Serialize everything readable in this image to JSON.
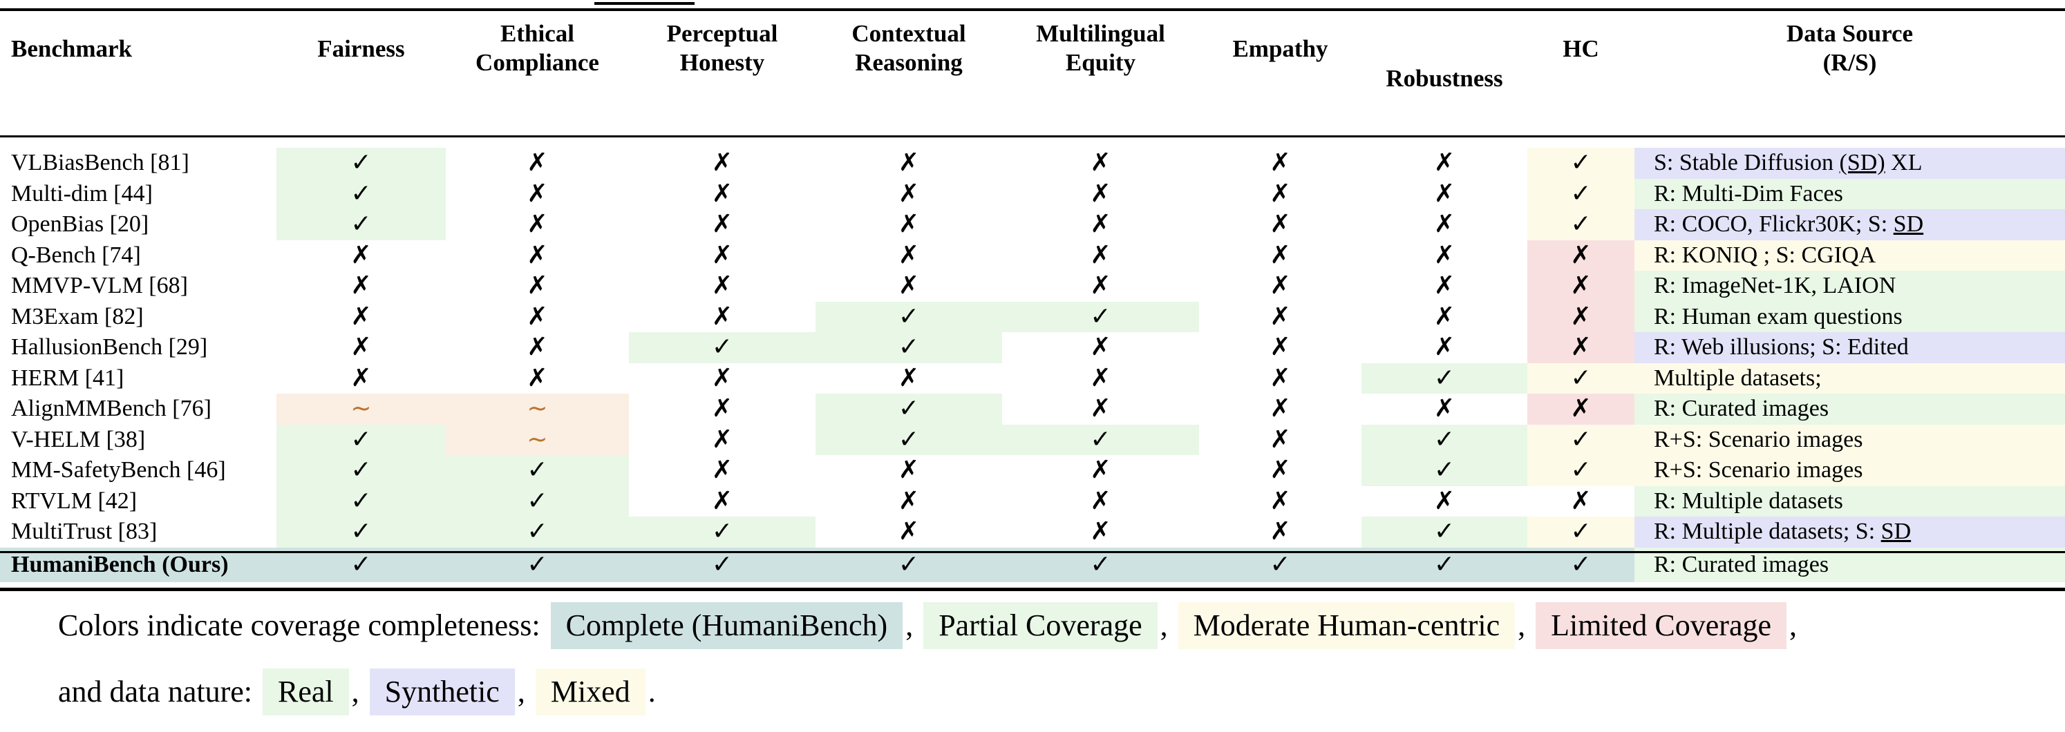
{
  "table": {
    "headers": [
      {
        "key": "benchmark",
        "label": "Benchmark",
        "lines": [
          "Benchmark"
        ]
      },
      {
        "key": "fair",
        "label": "Fairness",
        "lines": [
          "Fairness"
        ]
      },
      {
        "key": "eth",
        "label": "Ethical Compliance",
        "lines": [
          "Ethical",
          "Compliance"
        ]
      },
      {
        "key": "perc",
        "label": "Perceptual Honesty",
        "lines": [
          "Perceptual",
          "Honesty"
        ]
      },
      {
        "key": "ctx",
        "label": "Contextual Reasoning",
        "lines": [
          "Contextual",
          "Reasoning"
        ]
      },
      {
        "key": "multi",
        "label": "Multilingual Equity",
        "lines": [
          "Multilingual",
          "Equity"
        ]
      },
      {
        "key": "emp",
        "label": "Empathy",
        "lines": [
          "Empathy"
        ]
      },
      {
        "key": "rob",
        "label": "Robustness",
        "lines": [
          "Robustness"
        ]
      },
      {
        "key": "hc",
        "label": "HC",
        "lines": [
          "HC"
        ]
      },
      {
        "key": "src",
        "label": "Data Source (R/S)",
        "lines": [
          "Data Source",
          "(R/S)"
        ]
      }
    ],
    "rows": [
      {
        "name": "VLBiasBench [81]",
        "cells": [
          [
            "✓",
            "partial"
          ],
          [
            "✗",
            "none"
          ],
          [
            "✗",
            "none"
          ],
          [
            "✗",
            "none"
          ],
          [
            "✗",
            "none"
          ],
          [
            "✗",
            "none"
          ],
          [
            "✗",
            "none"
          ],
          [
            "✓",
            "moderate"
          ]
        ],
        "source": [
          [
            "S: Stable Diffusion ",
            ""
          ],
          [
            "(SD)",
            "u"
          ],
          [
            " XL",
            ""
          ]
        ],
        "source_color": "synthetic"
      },
      {
        "name": "Multi-dim [44]",
        "cells": [
          [
            "✓",
            "partial"
          ],
          [
            "✗",
            "none"
          ],
          [
            "✗",
            "none"
          ],
          [
            "✗",
            "none"
          ],
          [
            "✗",
            "none"
          ],
          [
            "✗",
            "none"
          ],
          [
            "✗",
            "none"
          ],
          [
            "✓",
            "moderate"
          ]
        ],
        "source": [
          [
            "R: Multi-Dim Faces",
            ""
          ]
        ],
        "source_color": "real"
      },
      {
        "name": "OpenBias [20]",
        "cells": [
          [
            "✓",
            "partial"
          ],
          [
            "✗",
            "none"
          ],
          [
            "✗",
            "none"
          ],
          [
            "✗",
            "none"
          ],
          [
            "✗",
            "none"
          ],
          [
            "✗",
            "none"
          ],
          [
            "✗",
            "none"
          ],
          [
            "✓",
            "moderate"
          ]
        ],
        "source": [
          [
            "R: COCO, Flickr30K; S: ",
            ""
          ],
          [
            "SD",
            "u"
          ]
        ],
        "source_color": "synthetic"
      },
      {
        "name": "Q-Bench [74]",
        "cells": [
          [
            "✗",
            "none"
          ],
          [
            "✗",
            "none"
          ],
          [
            "✗",
            "none"
          ],
          [
            "✗",
            "none"
          ],
          [
            "✗",
            "none"
          ],
          [
            "✗",
            "none"
          ],
          [
            "✗",
            "none"
          ],
          [
            "✗",
            "limited"
          ]
        ],
        "source": [
          [
            "R: KONIQ ; S: CGIQA",
            ""
          ]
        ],
        "source_color": "mixed"
      },
      {
        "name": "MMVP-VLM [68]",
        "cells": [
          [
            "✗",
            "none"
          ],
          [
            "✗",
            "none"
          ],
          [
            "✗",
            "none"
          ],
          [
            "✗",
            "none"
          ],
          [
            "✗",
            "none"
          ],
          [
            "✗",
            "none"
          ],
          [
            "✗",
            "none"
          ],
          [
            "✗",
            "limited"
          ]
        ],
        "source": [
          [
            "R: ImageNet-1K, LAION",
            ""
          ]
        ],
        "source_color": "real"
      },
      {
        "name": "M3Exam [82]",
        "cells": [
          [
            "✗",
            "none"
          ],
          [
            "✗",
            "none"
          ],
          [
            "✗",
            "none"
          ],
          [
            "✓",
            "partial"
          ],
          [
            "✓",
            "partial"
          ],
          [
            "✗",
            "none"
          ],
          [
            "✗",
            "none"
          ],
          [
            "✗",
            "limited"
          ]
        ],
        "source": [
          [
            "R: Human exam questions",
            ""
          ]
        ],
        "source_color": "real"
      },
      {
        "name": "HallusionBench [29]",
        "cells": [
          [
            "✗",
            "none"
          ],
          [
            "✗",
            "none"
          ],
          [
            "✓",
            "partial"
          ],
          [
            "✓",
            "partial"
          ],
          [
            "✗",
            "none"
          ],
          [
            "✗",
            "none"
          ],
          [
            "✗",
            "none"
          ],
          [
            "✗",
            "limited"
          ]
        ],
        "source": [
          [
            "R: Web illusions; S: Edited",
            ""
          ]
        ],
        "source_color": "synthetic"
      },
      {
        "name": "HERM [41]",
        "cells": [
          [
            "✗",
            "none"
          ],
          [
            "✗",
            "none"
          ],
          [
            "✗",
            "none"
          ],
          [
            "✗",
            "none"
          ],
          [
            "✗",
            "none"
          ],
          [
            "✗",
            "none"
          ],
          [
            "✓",
            "partial"
          ],
          [
            "✓",
            "moderate"
          ]
        ],
        "source": [
          [
            "Multiple datasets;",
            ""
          ]
        ],
        "source_color": "mixed"
      },
      {
        "name": "AlignMMBench [76]",
        "cells": [
          [
            "~",
            "tilde"
          ],
          [
            "~",
            "tilde"
          ],
          [
            "✗",
            "none"
          ],
          [
            "✓",
            "partial"
          ],
          [
            "✗",
            "none"
          ],
          [
            "✗",
            "none"
          ],
          [
            "✗",
            "none"
          ],
          [
            "✗",
            "limited"
          ]
        ],
        "source": [
          [
            "R: Curated images",
            ""
          ]
        ],
        "source_color": "real"
      },
      {
        "name": "V-HELM [38]",
        "cells": [
          [
            "✓",
            "partial"
          ],
          [
            "~",
            "tilde"
          ],
          [
            "✗",
            "none"
          ],
          [
            "✓",
            "partial"
          ],
          [
            "✓",
            "partial"
          ],
          [
            "✗",
            "none"
          ],
          [
            "✓",
            "partial"
          ],
          [
            "✓",
            "moderate"
          ]
        ],
        "source": [
          [
            "R+S: Scenario images",
            ""
          ]
        ],
        "source_color": "mixed"
      },
      {
        "name": "MM-SafetyBench [46]",
        "cells": [
          [
            "✓",
            "partial"
          ],
          [
            "✓",
            "partial"
          ],
          [
            "✗",
            "none"
          ],
          [
            "✗",
            "none"
          ],
          [
            "✗",
            "none"
          ],
          [
            "✗",
            "none"
          ],
          [
            "✓",
            "partial"
          ],
          [
            "✓",
            "moderate"
          ]
        ],
        "source": [
          [
            "R+S: Scenario images",
            ""
          ]
        ],
        "source_color": "mixed"
      },
      {
        "name": "RTVLM  [42]",
        "cells": [
          [
            "✓",
            "partial"
          ],
          [
            "✓",
            "partial"
          ],
          [
            "✗",
            "none"
          ],
          [
            "✗",
            "none"
          ],
          [
            "✗",
            "none"
          ],
          [
            "✗",
            "none"
          ],
          [
            "✗",
            "none"
          ],
          [
            "✗",
            "none"
          ]
        ],
        "source": [
          [
            "R: Multiple datasets",
            ""
          ]
        ],
        "source_color": "real"
      },
      {
        "name": "MultiTrust [83]",
        "cells": [
          [
            "✓",
            "partial"
          ],
          [
            "✓",
            "partial"
          ],
          [
            "✓",
            "partial"
          ],
          [
            "✗",
            "none"
          ],
          [
            "✗",
            "none"
          ],
          [
            "✗",
            "none"
          ],
          [
            "✓",
            "partial"
          ],
          [
            "✓",
            "moderate"
          ]
        ],
        "source": [
          [
            "R: Multiple datasets; S: ",
            ""
          ],
          [
            "SD",
            "u"
          ]
        ],
        "source_color": "synthetic"
      },
      {
        "name": "HumaniBench (Ours)",
        "ours": true,
        "cells": [
          [
            "✓",
            "complete"
          ],
          [
            "✓",
            "complete"
          ],
          [
            "✓",
            "complete"
          ],
          [
            "✓",
            "complete"
          ],
          [
            "✓",
            "complete"
          ],
          [
            "✓",
            "complete"
          ],
          [
            "✓",
            "complete"
          ],
          [
            "✓",
            "complete"
          ]
        ],
        "source": [
          [
            "R: Curated images",
            ""
          ]
        ],
        "source_color": "real"
      }
    ]
  },
  "legend": {
    "line1_prefix": "Colors indicate coverage completeness:",
    "complete": "Complete (HumaniBench)",
    "partial": "Partial Coverage",
    "moderate": "Moderate Human-centric",
    "limited": "Limited Coverage",
    "line2_prefix": "and data nature:",
    "real": "Real",
    "synthetic": "Synthetic",
    "mixed": "Mixed",
    "comma": ",",
    "period": "."
  },
  "colors": {
    "complete": "#cfe2e2",
    "partial": "#e8f7e6",
    "moderate": "#fdfbe8",
    "limited": "#f9e0e0",
    "real": "#e8f7e6",
    "synthetic": "#e2e2f8",
    "mixed": "#fdfbe8",
    "tilde_cell": "#fbeee3",
    "tilde_glyph": "#b8732e"
  }
}
